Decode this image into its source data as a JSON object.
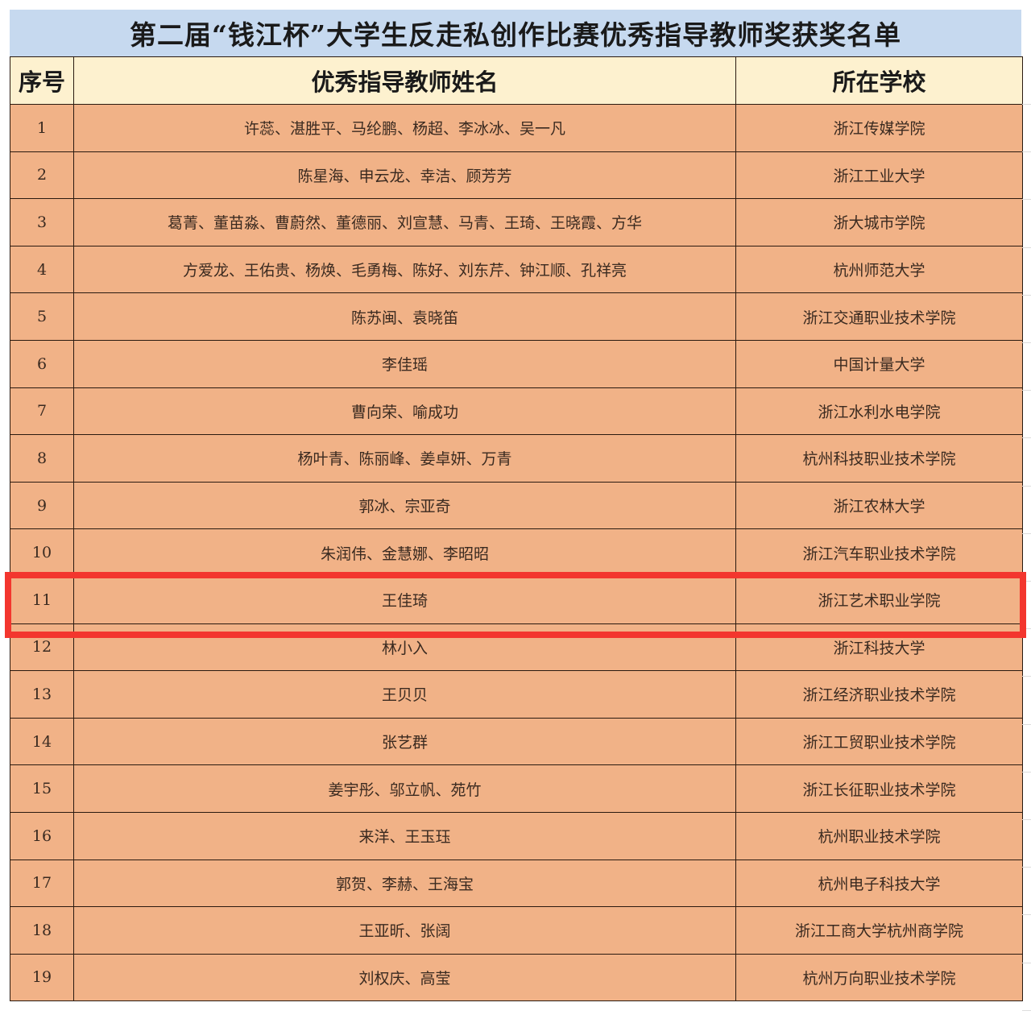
{
  "title": "第二届“钱江杯”大学生反走私创作比赛优秀指导教师奖获奖名单",
  "headers": {
    "index": "序号",
    "teachers": "优秀指导教师姓名",
    "school": "所在学校"
  },
  "highlight_color": "#f3362e",
  "highlighted_row": "11",
  "rows": [
    {
      "index": "1",
      "teachers": "许蕊、湛胜平、马纶鹏、杨超、李冰冰、吴一凡",
      "school": "浙江传媒学院"
    },
    {
      "index": "2",
      "teachers": "陈星海、申云龙、幸洁、顾芳芳",
      "school": "浙江工业大学"
    },
    {
      "index": "3",
      "teachers": "葛菁、董苗淼、曹蔚然、董德丽、刘宣慧、马青、王琦、王晓霞、方华",
      "school": "浙大城市学院"
    },
    {
      "index": "4",
      "teachers": "方爱龙、王佑贵、杨焕、毛勇梅、陈好、刘东芹、钟江顺、孔祥亮",
      "school": "杭州师范大学"
    },
    {
      "index": "5",
      "teachers": "陈苏闽、袁晓笛",
      "school": "浙江交通职业技术学院"
    },
    {
      "index": "6",
      "teachers": "李佳瑶",
      "school": "中国计量大学"
    },
    {
      "index": "7",
      "teachers": "曹向荣、喻成功",
      "school": "浙江水利水电学院"
    },
    {
      "index": "8",
      "teachers": "杨叶青、陈丽峰、姜卓妍、万青",
      "school": "杭州科技职业技术学院"
    },
    {
      "index": "9",
      "teachers": "郭冰、宗亚奇",
      "school": "浙江农林大学"
    },
    {
      "index": "10",
      "teachers": "朱润伟、金慧娜、李昭昭",
      "school": "浙江汽车职业技术学院"
    },
    {
      "index": "11",
      "teachers": "王佳琦",
      "school": "浙江艺术职业学院"
    },
    {
      "index": "12",
      "teachers": "林小入",
      "school": "浙江科技大学"
    },
    {
      "index": "13",
      "teachers": "王贝贝",
      "school": "浙江经济职业技术学院"
    },
    {
      "index": "14",
      "teachers": "张艺群",
      "school": "浙江工贸职业技术学院"
    },
    {
      "index": "15",
      "teachers": "姜宇彤、邬立帆、苑竹",
      "school": "浙江长征职业技术学院"
    },
    {
      "index": "16",
      "teachers": "来洋、王玉珏",
      "school": "杭州职业技术学院"
    },
    {
      "index": "17",
      "teachers": "郭贺、李赫、王海宝",
      "school": "杭州电子科技大学"
    },
    {
      "index": "18",
      "teachers": "王亚昕、张阔",
      "school": "浙江工商大学杭州商学院"
    },
    {
      "index": "19",
      "teachers": "刘权庆、高莹",
      "school": "杭州万向职业技术学院"
    }
  ]
}
